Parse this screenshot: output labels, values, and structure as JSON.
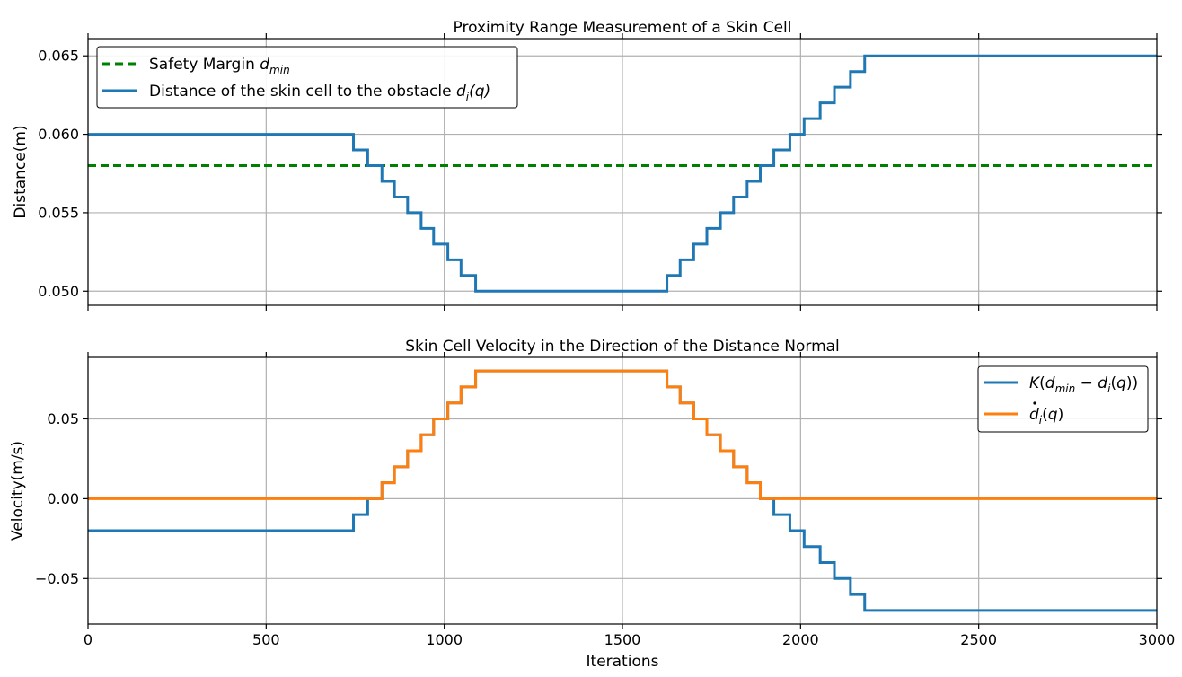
{
  "chart_data": [
    {
      "type": "line",
      "title": "Proximity Range Measurement of a Skin Cell",
      "xlabel": "",
      "ylabel": "Distance(m)",
      "xlim": [
        0,
        3000
      ],
      "ylim": [
        0.0491,
        0.0661
      ],
      "xticks": [
        0,
        500,
        1000,
        1500,
        2000,
        2500,
        3000
      ],
      "yticks": [
        0.05,
        0.055,
        0.06,
        0.065
      ],
      "ytick_labels": [
        "0.050",
        "0.055",
        "0.060",
        "0.065"
      ],
      "grid": true,
      "legend_position": "top-left",
      "series": [
        {
          "name": "Safety Margin d_min",
          "legend_text": "Safety Margin ",
          "legend_math": "d",
          "legend_sub": "min",
          "color": "#008000",
          "style": "dashed",
          "x": [
            0,
            3000
          ],
          "y": [
            0.058,
            0.058
          ]
        },
        {
          "name": "Distance of the skin cell to the obstacle d_i(q)",
          "legend_text": "Distance of the skin cell to the obstacle ",
          "legend_math": "d",
          "legend_sub": "i",
          "legend_tail": "(q)",
          "color": "#1f77b4",
          "style": "step",
          "x": [
            0,
            745,
            745,
            785,
            785,
            825,
            825,
            860,
            860,
            897,
            897,
            935,
            935,
            970,
            970,
            1010,
            1010,
            1047,
            1047,
            1088,
            1088,
            1625,
            1625,
            1662,
            1662,
            1700,
            1700,
            1737,
            1737,
            1775,
            1775,
            1812,
            1812,
            1850,
            1850,
            1887,
            1887,
            1925,
            1925,
            1970,
            1970,
            2010,
            2010,
            2055,
            2055,
            2095,
            2095,
            2140,
            2140,
            2180,
            2180,
            3000
          ],
          "y": [
            0.06,
            0.06,
            0.059,
            0.059,
            0.058,
            0.058,
            0.057,
            0.057,
            0.056,
            0.056,
            0.055,
            0.055,
            0.054,
            0.054,
            0.053,
            0.053,
            0.052,
            0.052,
            0.051,
            0.051,
            0.05,
            0.05,
            0.051,
            0.051,
            0.052,
            0.052,
            0.053,
            0.053,
            0.054,
            0.054,
            0.055,
            0.055,
            0.056,
            0.056,
            0.057,
            0.057,
            0.058,
            0.058,
            0.059,
            0.059,
            0.06,
            0.06,
            0.061,
            0.061,
            0.062,
            0.062,
            0.063,
            0.063,
            0.064,
            0.064,
            0.065,
            0.065
          ]
        }
      ]
    },
    {
      "type": "line",
      "title": "Skin Cell Velocity in the Direction of the Distance Normal",
      "xlabel": "Iterations",
      "ylabel": "Velocity(m/s)",
      "xlim": [
        0,
        3000
      ],
      "ylim": [
        -0.0785,
        0.0885
      ],
      "xticks": [
        0,
        500,
        1000,
        1500,
        2000,
        2500,
        3000
      ],
      "xtick_labels": [
        "0",
        "500",
        "1000",
        "1500",
        "2000",
        "2500",
        "3000"
      ],
      "yticks": [
        -0.05,
        0.0,
        0.05
      ],
      "ytick_labels": [
        "−0.05",
        "0.00",
        "0.05"
      ],
      "grid": true,
      "legend_position": "top-right",
      "series": [
        {
          "name": "K(d_min - d_i(q))",
          "legend_parts": [
            "K",
            "(",
            "d",
            "min",
            " − ",
            "d",
            "i",
            "(",
            "q",
            "))"
          ],
          "color": "#1f77b4",
          "style": "step",
          "x": [
            0,
            745,
            745,
            785,
            785,
            825,
            825,
            860,
            860,
            897,
            897,
            935,
            935,
            970,
            970,
            1010,
            1010,
            1047,
            1047,
            1088,
            1088,
            1625,
            1625,
            1662,
            1662,
            1700,
            1700,
            1737,
            1737,
            1775,
            1775,
            1812,
            1812,
            1850,
            1850,
            1887,
            1887,
            1925,
            1925,
            1970,
            1970,
            2010,
            2010,
            2055,
            2055,
            2095,
            2095,
            2140,
            2140,
            2180,
            2180,
            3000
          ],
          "y": [
            -0.02,
            -0.02,
            -0.01,
            -0.01,
            0.0,
            0.0,
            0.01,
            0.01,
            0.02,
            0.02,
            0.03,
            0.03,
            0.04,
            0.04,
            0.05,
            0.05,
            0.06,
            0.06,
            0.07,
            0.07,
            0.08,
            0.08,
            0.07,
            0.07,
            0.06,
            0.06,
            0.05,
            0.05,
            0.04,
            0.04,
            0.03,
            0.03,
            0.02,
            0.02,
            0.01,
            0.01,
            0.0,
            0.0,
            -0.01,
            -0.01,
            -0.02,
            -0.02,
            -0.03,
            -0.03,
            -0.04,
            -0.04,
            -0.05,
            -0.05,
            -0.06,
            -0.06,
            -0.07,
            -0.07
          ]
        },
        {
          "name": "d_i(q) dot",
          "legend_parts": [
            "d",
            "i",
            "(",
            "q",
            ")"
          ],
          "color": "#ff7f0e",
          "style": "step",
          "x": [
            0,
            825,
            825,
            860,
            860,
            897,
            897,
            935,
            935,
            970,
            970,
            1010,
            1010,
            1047,
            1047,
            1088,
            1088,
            1625,
            1625,
            1662,
            1662,
            1700,
            1700,
            1737,
            1737,
            1775,
            1775,
            1812,
            1812,
            1850,
            1850,
            1887,
            1887,
            3000
          ],
          "y": [
            0.0,
            0.0,
            0.01,
            0.01,
            0.02,
            0.02,
            0.03,
            0.03,
            0.04,
            0.04,
            0.05,
            0.05,
            0.06,
            0.06,
            0.07,
            0.07,
            0.08,
            0.08,
            0.07,
            0.07,
            0.06,
            0.06,
            0.05,
            0.05,
            0.04,
            0.04,
            0.03,
            0.03,
            0.02,
            0.02,
            0.01,
            0.01,
            0.0,
            0.0
          ]
        }
      ]
    }
  ]
}
